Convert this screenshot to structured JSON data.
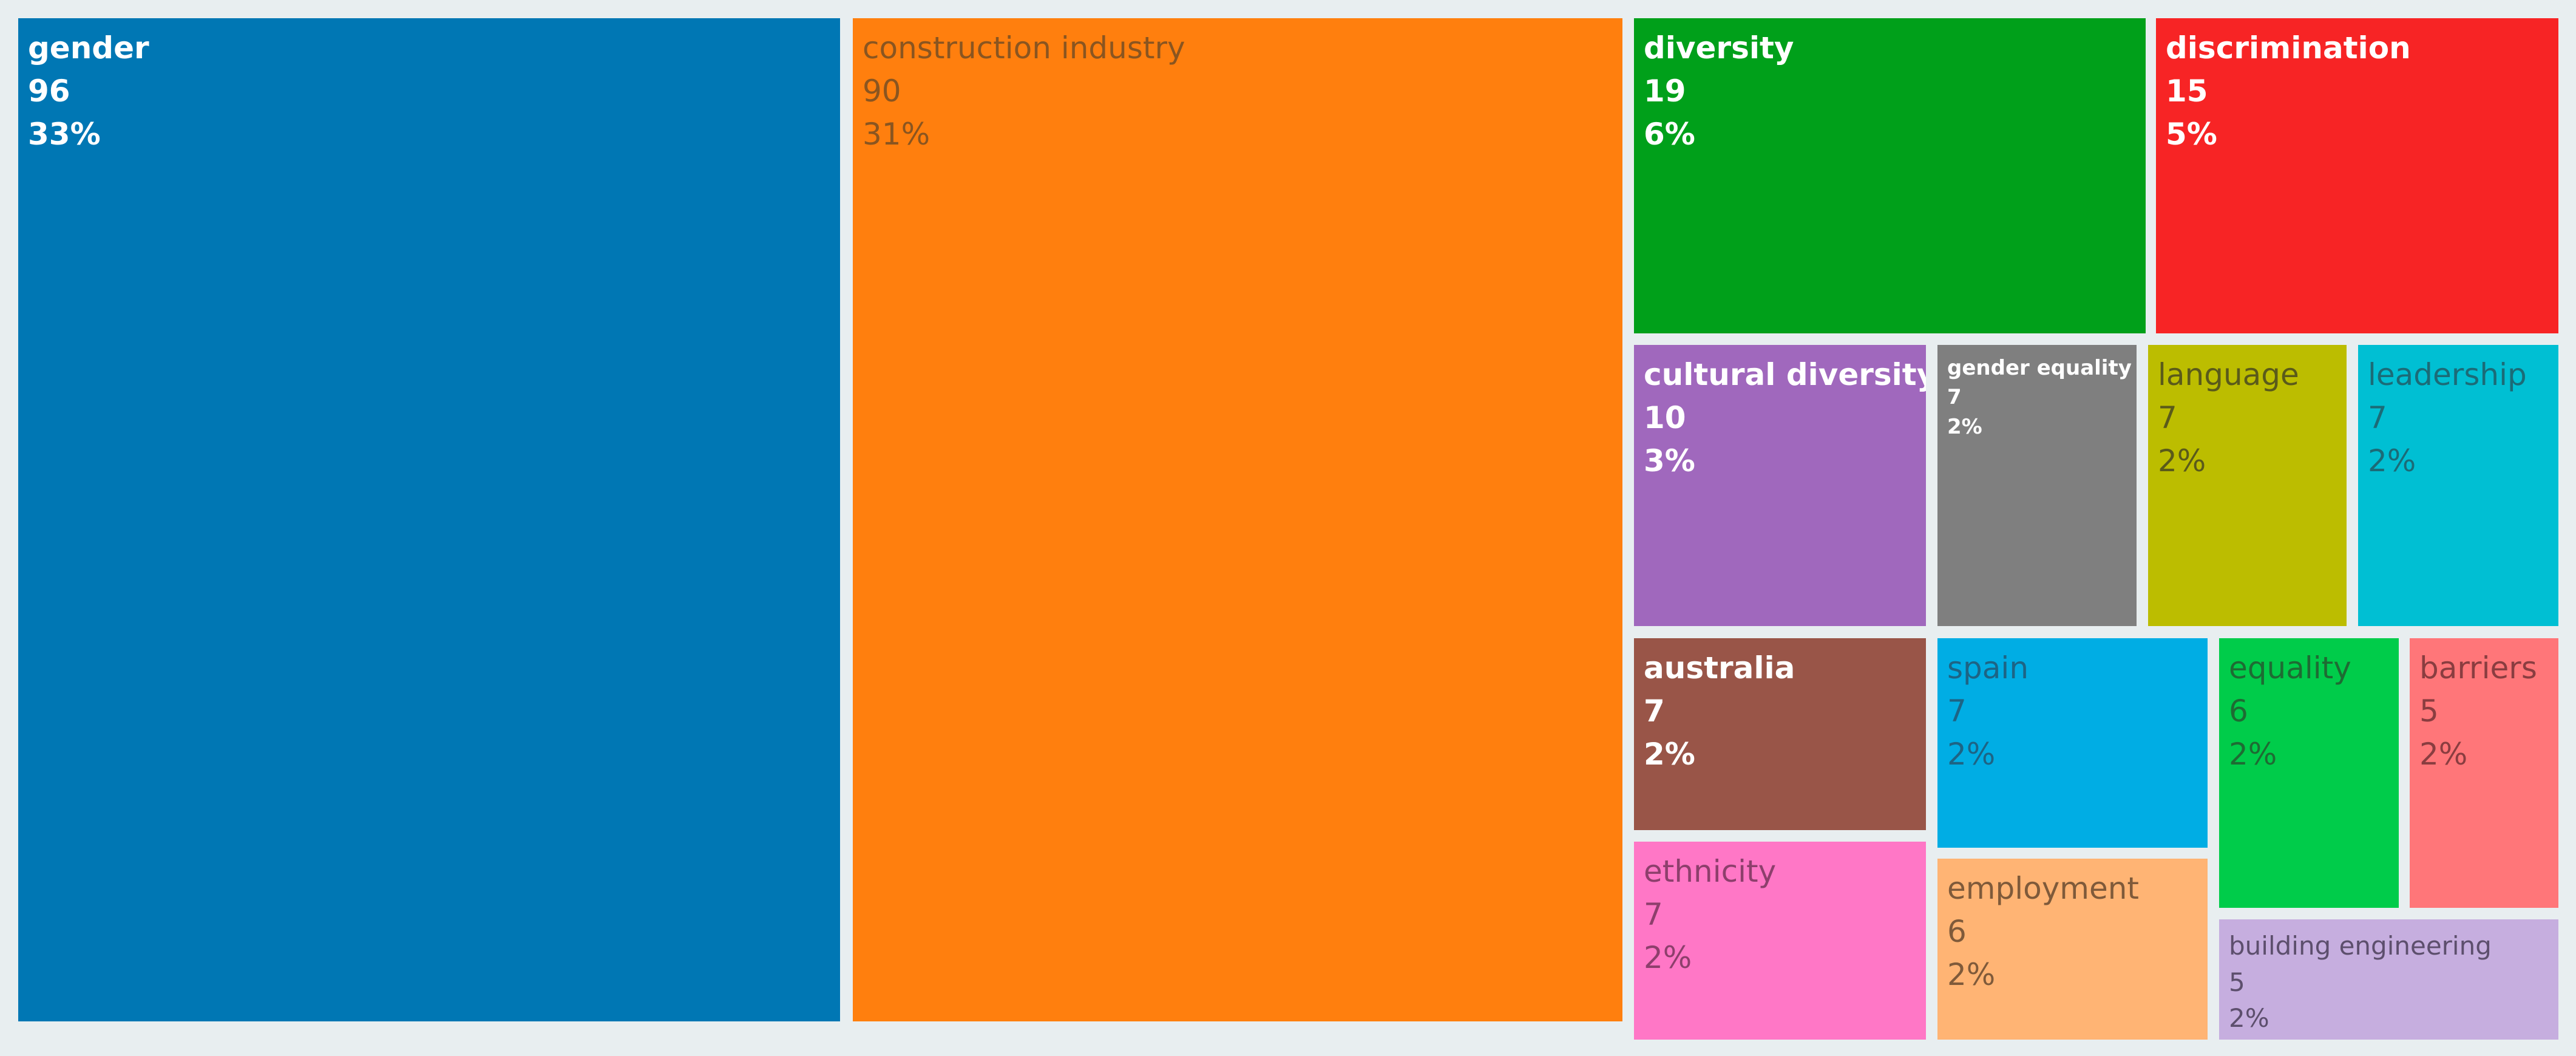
{
  "chart_data": {
    "type": "treemap",
    "items": [
      {
        "label": "gender",
        "value": 96,
        "percent": "33%",
        "color": "#0077b4",
        "text_color": "#ffffff"
      },
      {
        "label": "construction industry",
        "value": 90,
        "percent": "31%",
        "color": "#ff7f0e",
        "text_color": "#8a5520"
      },
      {
        "label": "diversity",
        "value": 19,
        "percent": "6%",
        "color": "#00a01a",
        "text_color": "#ffffff"
      },
      {
        "label": "discrimination",
        "value": 15,
        "percent": "5%",
        "color": "#f72425",
        "text_color": "#ffffff"
      },
      {
        "label": "cultural diversity",
        "value": 10,
        "percent": "3%",
        "color": "#a068bd",
        "text_color": "#ffffff"
      },
      {
        "label": "gender equality",
        "value": 7,
        "percent": "2%",
        "color": "#7f7f7f",
        "text_color": "#ffffff"
      },
      {
        "label": "language",
        "value": 7,
        "percent": "2%",
        "color": "#bcbd00",
        "text_color": "#5a5a1a"
      },
      {
        "label": "leadership",
        "value": 7,
        "percent": "2%",
        "color": "#00bfd3",
        "text_color": "#1b6b77"
      },
      {
        "label": "australia",
        "value": 7,
        "percent": "2%",
        "color": "#995548",
        "text_color": "#ffffff"
      },
      {
        "label": "spain",
        "value": 7,
        "percent": "2%",
        "color": "#00ade4",
        "text_color": "#1d6485"
      },
      {
        "label": "equality",
        "value": 6,
        "percent": "2%",
        "color": "#00cc4a",
        "text_color": "#1e6b33"
      },
      {
        "label": "barriers",
        "value": 5,
        "percent": "2%",
        "color": "#ff7679",
        "text_color": "#8a3d40"
      },
      {
        "label": "ethnicity",
        "value": 7,
        "percent": "2%",
        "color": "#ff77c6",
        "text_color": "#8d3f6c"
      },
      {
        "label": "employment",
        "value": 6,
        "percent": "2%",
        "color": "#ffb474",
        "text_color": "#7f5a3a"
      },
      {
        "label": "building engineering",
        "value": 5,
        "percent": "2%",
        "color": "#c6aedf",
        "text_color": "#5d4f6d"
      }
    ]
  }
}
